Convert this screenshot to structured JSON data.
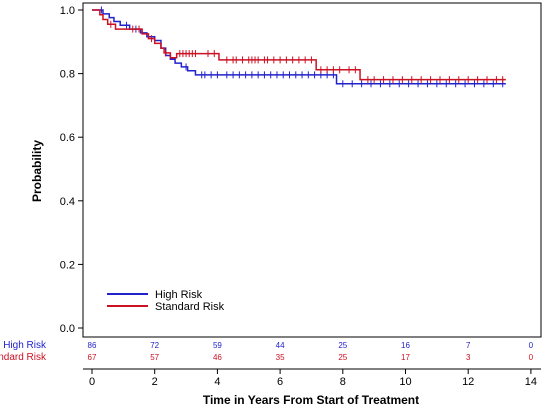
{
  "chart_data": {
    "type": "line",
    "title": "",
    "xlabel": "Time in Years From Start of Treatment",
    "ylabel": "Probability",
    "xlim": [
      -0.3,
      14
    ],
    "ylim": [
      -0.02,
      1.02
    ],
    "x_ticks": [
      "0",
      "2",
      "4",
      "6",
      "8",
      "10",
      "12",
      "14"
    ],
    "y_ticks": [
      "0.0",
      "0.2",
      "0.4",
      "0.6",
      "0.8",
      "1.0"
    ],
    "grid": false,
    "legend_position": "bottom-left",
    "series": [
      {
        "name": "High Risk",
        "color": "#2222cc",
        "step_points": [
          [
            0,
            1.0
          ],
          [
            0.35,
            0.988
          ],
          [
            0.55,
            0.976
          ],
          [
            0.7,
            0.964
          ],
          [
            0.9,
            0.952
          ],
          [
            1.2,
            0.94
          ],
          [
            1.55,
            0.928
          ],
          [
            1.75,
            0.916
          ],
          [
            2.0,
            0.904
          ],
          [
            2.2,
            0.88
          ],
          [
            2.35,
            0.857
          ],
          [
            2.5,
            0.845
          ],
          [
            2.65,
            0.833
          ],
          [
            2.85,
            0.821
          ],
          [
            3.05,
            0.809
          ],
          [
            3.3,
            0.796
          ],
          [
            7.8,
            0.768
          ],
          [
            13.2,
            0.768
          ]
        ],
        "censor_times": [
          0.3,
          1.1,
          1.4,
          3.0,
          3.5,
          3.6,
          3.8,
          4.0,
          4.3,
          4.5,
          4.7,
          4.9,
          5.1,
          5.3,
          5.5,
          5.7,
          5.9,
          6.1,
          6.3,
          6.5,
          6.7,
          6.9,
          7.1,
          7.3,
          7.5,
          7.7,
          8.0,
          8.3,
          8.6,
          8.9,
          9.2,
          9.5,
          9.8,
          10.1,
          10.4,
          10.7,
          11.0,
          11.3,
          11.6,
          11.9,
          12.2,
          12.5,
          12.8,
          13.1
        ]
      },
      {
        "name": "Standard Risk",
        "color": "#cc1122",
        "step_points": [
          [
            0,
            1.0
          ],
          [
            0.25,
            0.985
          ],
          [
            0.35,
            0.97
          ],
          [
            0.5,
            0.955
          ],
          [
            0.75,
            0.94
          ],
          [
            1.6,
            0.925
          ],
          [
            1.8,
            0.91
          ],
          [
            2.0,
            0.895
          ],
          [
            2.2,
            0.88
          ],
          [
            2.3,
            0.865
          ],
          [
            2.5,
            0.85
          ],
          [
            2.7,
            0.863
          ],
          [
            4.05,
            0.843
          ],
          [
            7.15,
            0.812
          ],
          [
            8.55,
            0.781
          ],
          [
            13.2,
            0.781
          ]
        ],
        "censor_times": [
          0.6,
          1.3,
          1.5,
          1.9,
          2.35,
          2.8,
          2.9,
          3.0,
          3.1,
          3.2,
          3.3,
          3.7,
          3.9,
          4.3,
          4.5,
          4.6,
          4.8,
          5.0,
          5.1,
          5.2,
          5.3,
          5.5,
          5.6,
          5.8,
          6.0,
          6.2,
          6.4,
          6.6,
          6.8,
          7.0,
          7.3,
          7.5,
          7.7,
          7.9,
          8.2,
          8.4,
          8.8,
          9.0,
          9.3,
          9.6,
          9.9,
          10.2,
          10.5,
          10.8,
          11.1,
          11.4,
          11.7,
          12.0,
          12.3,
          12.6,
          12.9,
          13.1
        ]
      }
    ]
  },
  "risk_table": {
    "time_points": [
      0,
      2,
      4,
      6,
      8,
      10,
      12,
      14
    ],
    "rows": [
      {
        "label": "High Risk",
        "color": "#2222cc",
        "values": [
          "86",
          "72",
          "59",
          "44",
          "25",
          "16",
          "7",
          "0"
        ]
      },
      {
        "label": "Standard Risk",
        "color": "#cc1122",
        "values": [
          "67",
          "57",
          "46",
          "35",
          "25",
          "17",
          "3",
          "0"
        ]
      }
    ]
  }
}
